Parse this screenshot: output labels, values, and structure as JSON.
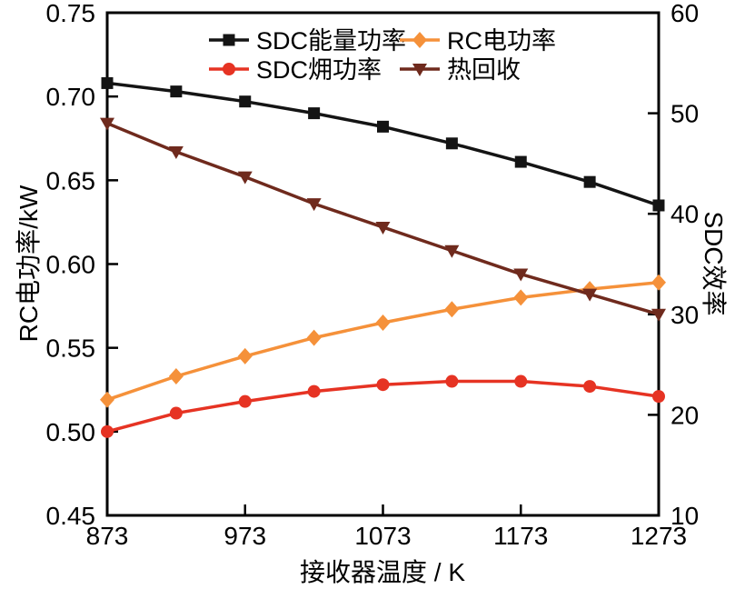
{
  "chart_data": {
    "type": "line",
    "title": "",
    "xlabel": "接收器温度 / K",
    "ylabel_left": "RC电功率/kW",
    "ylabel_right": "SDC效率",
    "xlim": [
      873,
      1273
    ],
    "xticks": [
      873,
      973,
      1073,
      1173,
      1273
    ],
    "ylim_left": [
      0.45,
      0.75
    ],
    "yticks_left": [
      0.45,
      0.5,
      0.55,
      0.6,
      0.65,
      0.7,
      0.75
    ],
    "ylim_right": [
      10,
      60
    ],
    "yticks_right": [
      10,
      20,
      30,
      40,
      50,
      60
    ],
    "grid": false,
    "legend_position": "top-inside",
    "frame_color": "#000000",
    "x": [
      873,
      923,
      973,
      1023,
      1073,
      1123,
      1173,
      1223,
      1273
    ],
    "series": [
      {
        "name": "SDC能量功率",
        "color": "#141414",
        "marker": "square",
        "axis": "left",
        "values": [
          0.708,
          0.703,
          0.697,
          0.69,
          0.682,
          0.672,
          0.661,
          0.649,
          0.635
        ]
      },
      {
        "name": "SDC㶲功率",
        "color": "#e63323",
        "marker": "circle",
        "axis": "left",
        "values": [
          0.5,
          0.511,
          0.518,
          0.524,
          0.528,
          0.53,
          0.53,
          0.527,
          0.521
        ]
      },
      {
        "name": "RC电功率",
        "color": "#f5913a",
        "marker": "diamond",
        "axis": "left",
        "values": [
          0.519,
          0.533,
          0.545,
          0.556,
          0.565,
          0.573,
          0.58,
          0.585,
          0.589
        ]
      },
      {
        "name": "热回收",
        "color": "#6f2a1d",
        "marker": "triangle-down",
        "axis": "left",
        "values": [
          0.684,
          0.667,
          0.652,
          0.636,
          0.622,
          0.608,
          0.594,
          0.582,
          0.57
        ]
      }
    ]
  }
}
